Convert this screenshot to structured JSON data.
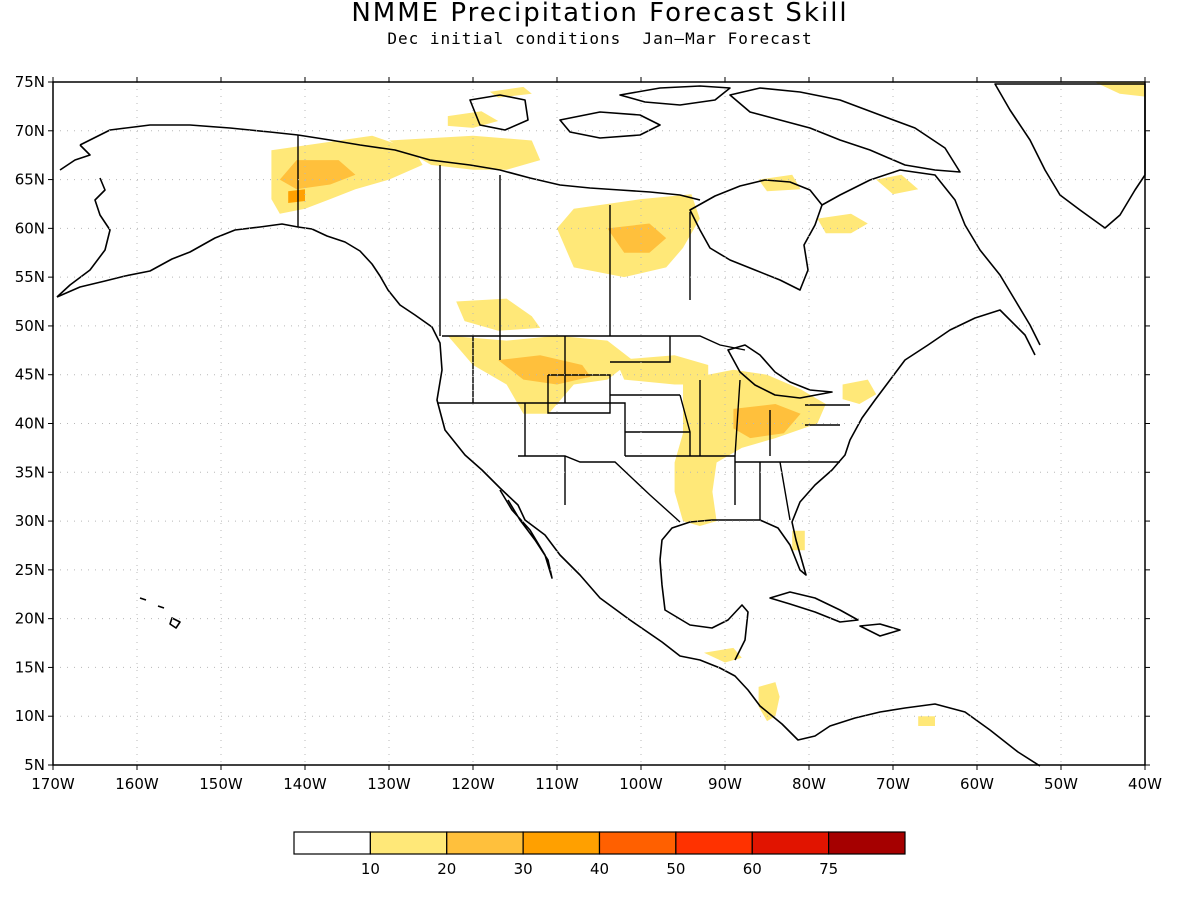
{
  "title": "NMME Precipitation Forecast Skill",
  "subtitle": "Dec initial conditions  Jan–Mar Forecast",
  "map": {
    "lon_range": [
      -170,
      -40
    ],
    "lat_range": [
      5,
      75
    ],
    "grid": "dotted",
    "lat_labels": [
      "75N",
      "70N",
      "65N",
      "60N",
      "55N",
      "50N",
      "45N",
      "40N",
      "35N",
      "30N",
      "25N",
      "20N",
      "15N",
      "10N",
      "5N"
    ],
    "lon_labels": [
      "170W",
      "160W",
      "150W",
      "140W",
      "130W",
      "120W",
      "110W",
      "100W",
      "90W",
      "80W",
      "70W",
      "60W",
      "50W",
      "40W"
    ],
    "shading_regions": [
      {
        "name": "alaska-yukon",
        "level": 10,
        "points": [
          [
            -144,
            68
          ],
          [
            -132,
            69.5
          ],
          [
            -127,
            68
          ],
          [
            -126,
            66.5
          ],
          [
            -130,
            65
          ],
          [
            -134,
            64
          ],
          [
            -137,
            63
          ],
          [
            -140,
            62
          ],
          [
            -143,
            61.5
          ],
          [
            -144,
            63
          ],
          [
            -144,
            66
          ]
        ]
      },
      {
        "name": "alaska-yukon-core",
        "level": 20,
        "points": [
          [
            -141,
            67
          ],
          [
            -136,
            67
          ],
          [
            -134,
            65.5
          ],
          [
            -137,
            64.5
          ],
          [
            -141,
            64
          ],
          [
            -143,
            65
          ]
        ]
      },
      {
        "name": "alaska-yukon-max",
        "level": 30,
        "points": [
          [
            -142,
            63.8
          ],
          [
            -140,
            64
          ],
          [
            -140,
            62.8
          ],
          [
            -142,
            62.6
          ]
        ]
      },
      {
        "name": "nw-territories-north",
        "level": 10,
        "points": [
          [
            -130,
            69
          ],
          [
            -120,
            69.5
          ],
          [
            -113,
            69
          ],
          [
            -112,
            67
          ],
          [
            -116,
            66
          ],
          [
            -120,
            66
          ],
          [
            -125,
            66.5
          ]
        ]
      },
      {
        "name": "banks-island",
        "level": 10,
        "points": [
          [
            -123,
            71.5
          ],
          [
            -119,
            72
          ],
          [
            -117,
            71
          ],
          [
            -120,
            70.3
          ],
          [
            -123,
            70.5
          ]
        ]
      },
      {
        "name": "arctic-islands",
        "level": 10,
        "points": [
          [
            -118,
            74
          ],
          [
            -114,
            74.5
          ],
          [
            -113,
            73.8
          ],
          [
            -117,
            73.4
          ]
        ]
      },
      {
        "name": "hudson-west",
        "level": 10,
        "points": [
          [
            -108,
            62
          ],
          [
            -100,
            63
          ],
          [
            -94,
            63.5
          ],
          [
            -93,
            61
          ],
          [
            -95,
            58
          ],
          [
            -97,
            56
          ],
          [
            -102,
            55
          ],
          [
            -108,
            56
          ],
          [
            -109,
            58
          ],
          [
            -110,
            60
          ]
        ]
      },
      {
        "name": "hudson-west-core",
        "level": 20,
        "points": [
          [
            -104,
            60
          ],
          [
            -99,
            60.5
          ],
          [
            -97,
            59
          ],
          [
            -99,
            57.5
          ],
          [
            -102,
            57.5
          ]
        ]
      },
      {
        "name": "labrador",
        "level": 10,
        "points": [
          [
            -79,
            61
          ],
          [
            -75,
            61.5
          ],
          [
            -73,
            60.5
          ],
          [
            -75,
            59.5
          ],
          [
            -78,
            59.5
          ]
        ]
      },
      {
        "name": "baffin-south",
        "level": 10,
        "points": [
          [
            -72,
            65
          ],
          [
            -69,
            65.5
          ],
          [
            -67,
            64
          ],
          [
            -70,
            63.5
          ]
        ]
      },
      {
        "name": "nunavut-east",
        "level": 10,
        "points": [
          [
            -86,
            65
          ],
          [
            -82,
            65.5
          ],
          [
            -81,
            64
          ],
          [
            -85,
            63.8
          ]
        ]
      },
      {
        "name": "greenland-ne",
        "level": 10,
        "points": [
          [
            -46,
            75
          ],
          [
            -40,
            75
          ],
          [
            -40,
            73.5
          ],
          [
            -43,
            73.8
          ]
        ]
      },
      {
        "name": "bc-alberta",
        "level": 10,
        "points": [
          [
            -122,
            52.5
          ],
          [
            -116,
            52.8
          ],
          [
            -113,
            51
          ],
          [
            -112,
            49.8
          ],
          [
            -117,
            49.5
          ],
          [
            -121,
            50.5
          ]
        ]
      },
      {
        "name": "northern-rockies",
        "level": 10,
        "points": [
          [
            -123,
            49
          ],
          [
            -116,
            48.5
          ],
          [
            -110,
            49
          ],
          [
            -104,
            48.5
          ],
          [
            -101,
            46.5
          ],
          [
            -104,
            44.5
          ],
          [
            -108,
            44
          ],
          [
            -111,
            41
          ],
          [
            -114,
            41
          ],
          [
            -116,
            44
          ],
          [
            -120,
            46
          ]
        ]
      },
      {
        "name": "northern-rockies-core",
        "level": 20,
        "points": [
          [
            -117,
            46.5
          ],
          [
            -112,
            47
          ],
          [
            -107,
            46
          ],
          [
            -106,
            44.8
          ],
          [
            -110,
            44
          ],
          [
            -114,
            44.5
          ]
        ]
      },
      {
        "name": "great-plains-north",
        "level": 10,
        "points": [
          [
            -103,
            46.5
          ],
          [
            -96,
            47
          ],
          [
            -92,
            46
          ],
          [
            -92,
            44
          ],
          [
            -96,
            44
          ],
          [
            -102,
            44.5
          ]
        ]
      },
      {
        "name": "mississippi-ohio",
        "level": 10,
        "points": [
          [
            -95,
            44.5
          ],
          [
            -89,
            45.5
          ],
          [
            -85,
            45
          ],
          [
            -81,
            43.5
          ],
          [
            -78,
            42
          ],
          [
            -79,
            40
          ],
          [
            -84,
            38.5
          ],
          [
            -88,
            37.5
          ],
          [
            -91,
            36
          ],
          [
            -91.5,
            33
          ],
          [
            -91,
            30
          ],
          [
            -93,
            29.5
          ],
          [
            -95,
            30
          ],
          [
            -96,
            33
          ],
          [
            -96,
            36
          ],
          [
            -95,
            39
          ],
          [
            -95,
            42
          ]
        ]
      },
      {
        "name": "ohio-valley-core",
        "level": 20,
        "points": [
          [
            -89,
            41.5
          ],
          [
            -84,
            42
          ],
          [
            -81,
            41
          ],
          [
            -83,
            39
          ],
          [
            -87,
            38.5
          ],
          [
            -89,
            39.5
          ]
        ]
      },
      {
        "name": "east-coast-ny",
        "level": 10,
        "points": [
          [
            -76,
            44
          ],
          [
            -73,
            44.5
          ],
          [
            -72,
            43
          ],
          [
            -74,
            42
          ],
          [
            -76,
            42.5
          ]
        ]
      },
      {
        "name": "florida",
        "level": 10,
        "points": [
          [
            -82,
            29
          ],
          [
            -80.5,
            29
          ],
          [
            -80.5,
            27
          ],
          [
            -82,
            27
          ]
        ]
      },
      {
        "name": "honduras-nicaragua",
        "level": 10,
        "points": [
          [
            -86,
            13
          ],
          [
            -84,
            13.5
          ],
          [
            -83.5,
            12
          ],
          [
            -84,
            10
          ],
          [
            -85,
            9.5
          ],
          [
            -86,
            11
          ]
        ]
      },
      {
        "name": "guatemala",
        "level": 10,
        "points": [
          [
            -92.5,
            16.5
          ],
          [
            -89,
            17
          ],
          [
            -88,
            16
          ],
          [
            -90,
            15.5
          ]
        ]
      },
      {
        "name": "venezuela",
        "level": 10,
        "points": [
          [
            -67,
            10
          ],
          [
            -65,
            10
          ],
          [
            -65,
            9
          ],
          [
            -67,
            9
          ]
        ]
      }
    ]
  },
  "colorbar": {
    "colors": [
      "#ffffff",
      "#ffe878",
      "#ffc03c",
      "#ffa000",
      "#ff6000",
      "#ff3200",
      "#e11400",
      "#a50000"
    ],
    "labels": [
      "10",
      "20",
      "30",
      "40",
      "50",
      "60",
      "75"
    ]
  }
}
